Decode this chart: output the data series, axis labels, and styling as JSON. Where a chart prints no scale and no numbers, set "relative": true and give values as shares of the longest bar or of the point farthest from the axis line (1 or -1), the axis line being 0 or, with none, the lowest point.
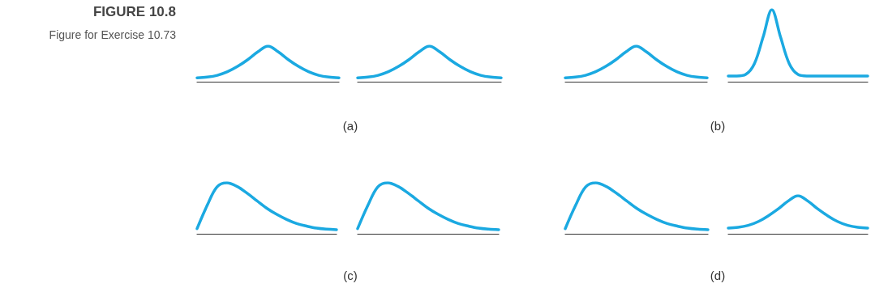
{
  "chart_data": [
    {
      "type": "line",
      "title": "FIGURE 10.8",
      "subtitle": "Figure for Exercise 10.73",
      "xlabel": "(a)",
      "relative": true,
      "color": "#1ba9e1",
      "categories": [
        null,
        null,
        null,
        null,
        null,
        null,
        null,
        null,
        null,
        null,
        null,
        null,
        null,
        null,
        null
      ],
      "values": [
        0.11,
        0.13,
        0.18,
        0.28,
        0.43,
        0.62,
        0.84,
        1,
        0.84,
        0.62,
        0.43,
        0.28,
        0.18,
        0.13,
        0.11
      ]
    },
    {
      "type": "line",
      "relative": true,
      "color": "#1ba9e1",
      "categories": [
        null,
        null,
        null,
        null,
        null,
        null,
        null,
        null,
        null,
        null,
        null,
        null,
        null,
        null,
        null
      ],
      "values": [
        0.11,
        0.13,
        0.18,
        0.28,
        0.43,
        0.62,
        0.84,
        1,
        0.84,
        0.62,
        0.43,
        0.28,
        0.18,
        0.13,
        0.11
      ]
    },
    {
      "type": "line",
      "xlabel": "(b)",
      "relative": true,
      "color": "#1ba9e1",
      "categories": [
        null,
        null,
        null,
        null,
        null,
        null,
        null,
        null,
        null,
        null,
        null,
        null,
        null,
        null,
        null
      ],
      "values": [
        0.11,
        0.13,
        0.18,
        0.28,
        0.43,
        0.62,
        0.84,
        1,
        0.84,
        0.62,
        0.43,
        0.28,
        0.18,
        0.13,
        0.11
      ]
    },
    {
      "type": "line",
      "relative": true,
      "color": "#1ba9e1",
      "categories": [
        null,
        null,
        null,
        null,
        null,
        null,
        null,
        null,
        null,
        null,
        null,
        null,
        null,
        null,
        null,
        null,
        null
      ],
      "values": [
        0.08,
        0.08,
        0.1,
        0.25,
        0.62,
        1,
        0.62,
        0.25,
        0.1,
        0.08,
        0.08,
        0.08,
        0.08,
        0.08,
        0.08,
        0.08,
        0.08
      ]
    },
    {
      "type": "line",
      "xlabel": "(c)",
      "relative": true,
      "color": "#1ba9e1",
      "categories": [
        null,
        null,
        null,
        null,
        null,
        null,
        null,
        null,
        null,
        null,
        null,
        null,
        null,
        null,
        null
      ],
      "values": [
        0.1,
        0.55,
        0.92,
        1,
        0.93,
        0.8,
        0.65,
        0.5,
        0.38,
        0.28,
        0.2,
        0.15,
        0.11,
        0.09,
        0.08
      ]
    },
    {
      "type": "line",
      "relative": true,
      "color": "#1ba9e1",
      "categories": [
        null,
        null,
        null,
        null,
        null,
        null,
        null,
        null,
        null,
        null,
        null,
        null,
        null,
        null,
        null
      ],
      "values": [
        0.1,
        0.55,
        0.92,
        1,
        0.93,
        0.8,
        0.65,
        0.5,
        0.38,
        0.28,
        0.2,
        0.15,
        0.11,
        0.09,
        0.08
      ]
    },
    {
      "type": "line",
      "xlabel": "(d)",
      "relative": true,
      "color": "#1ba9e1",
      "categories": [
        null,
        null,
        null,
        null,
        null,
        null,
        null,
        null,
        null,
        null,
        null,
        null,
        null,
        null,
        null
      ],
      "values": [
        0.1,
        0.55,
        0.92,
        1,
        0.93,
        0.8,
        0.65,
        0.5,
        0.38,
        0.28,
        0.2,
        0.15,
        0.11,
        0.09,
        0.08
      ]
    },
    {
      "type": "line",
      "relative": true,
      "color": "#1ba9e1",
      "categories": [
        null,
        null,
        null,
        null,
        null,
        null,
        null,
        null,
        null,
        null,
        null,
        null,
        null,
        null,
        null
      ],
      "values": [
        0.15,
        0.17,
        0.22,
        0.32,
        0.47,
        0.65,
        0.86,
        1,
        0.86,
        0.65,
        0.47,
        0.32,
        0.22,
        0.17,
        0.15
      ]
    }
  ]
}
